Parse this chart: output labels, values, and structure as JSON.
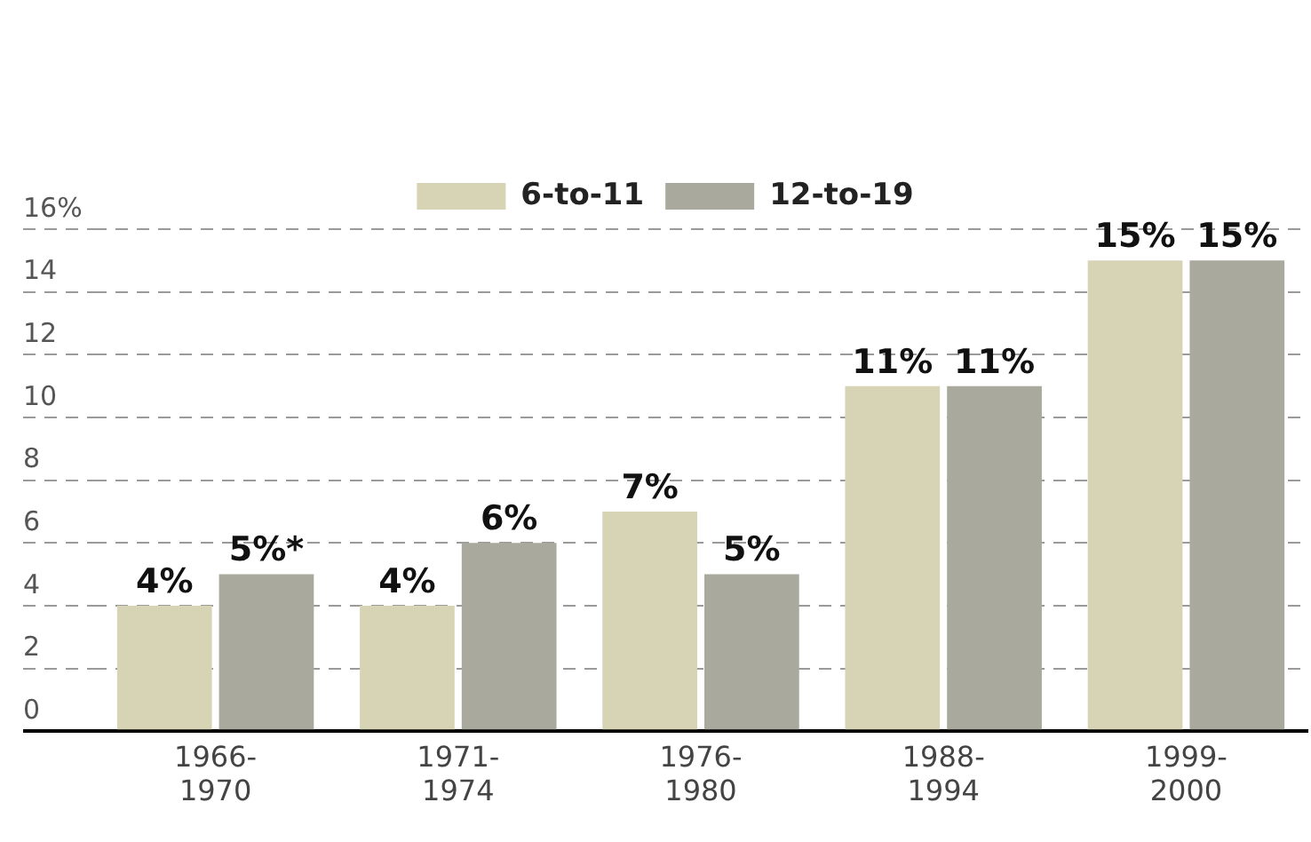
{
  "chart_data": {
    "type": "bar",
    "categories": [
      "1966-1970",
      "1971-1974",
      "1976-1980",
      "1988-1994",
      "1999-2000"
    ],
    "series": [
      {
        "name": "6-to-11",
        "color": "#d6d4b4",
        "values": [
          4,
          4,
          7,
          11,
          15
        ],
        "value_labels": [
          "4%",
          "4%",
          "7%",
          "11%",
          "15%"
        ]
      },
      {
        "name": "12-to-19",
        "color": "#a9a99d",
        "values": [
          5,
          6,
          5,
          11,
          15
        ],
        "value_labels": [
          "5%*",
          "6%",
          "5%",
          "11%",
          "15%"
        ]
      }
    ],
    "ylim": [
      0,
      16
    ],
    "yticks": [
      0,
      2,
      4,
      6,
      8,
      10,
      12,
      14,
      {
        "value": 16,
        "label": "16%"
      }
    ],
    "grid": "y",
    "legend": "top"
  }
}
